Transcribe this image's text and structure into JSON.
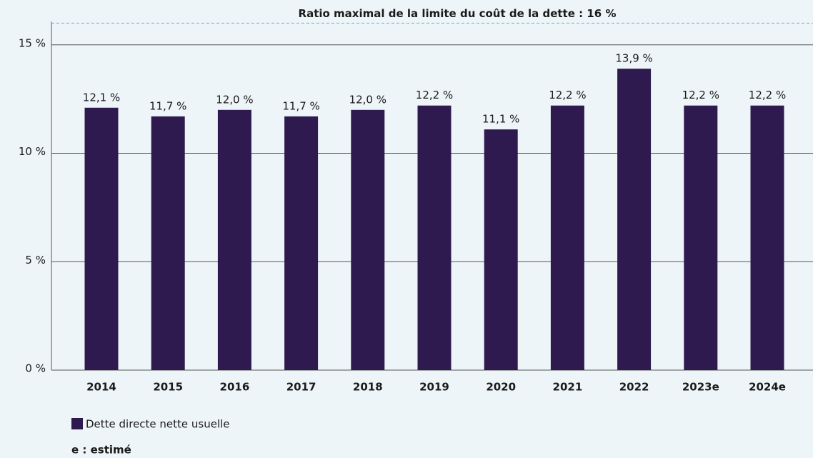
{
  "chart_data": {
    "type": "bar",
    "categories": [
      "2014",
      "2015",
      "2016",
      "2017",
      "2018",
      "2019",
      "2020",
      "2021",
      "2022",
      "2023e",
      "2024e"
    ],
    "series": [
      {
        "name": "Dette directe nette usuelle",
        "color": "#2e1a4f",
        "values": [
          12.1,
          11.7,
          12.0,
          11.7,
          12.0,
          12.2,
          11.1,
          12.2,
          13.9,
          12.2,
          12.2
        ],
        "value_labels": [
          "12,1 %",
          "11,7 %",
          "12,0 %",
          "11,7 %",
          "12,0 %",
          "12,2 %",
          "11,1 %",
          "12,2 %",
          "13,9 %",
          "12,2 %",
          "12,2 %"
        ]
      }
    ],
    "ylim": [
      0,
      16
    ],
    "yticks": [
      {
        "value": 0,
        "label": "0 %"
      },
      {
        "value": 5,
        "label": "5 %"
      },
      {
        "value": 10,
        "label": "10 %"
      },
      {
        "value": 15,
        "label": "15 %"
      }
    ],
    "grid": true,
    "reference_line": {
      "value": 16,
      "label": "Ratio maximal de la limite du coût de la dette : 16 %"
    },
    "footnote": "e : estimé"
  }
}
